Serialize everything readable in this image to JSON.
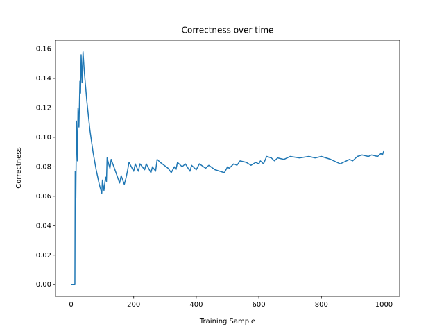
{
  "chart_data": {
    "type": "line",
    "title": "Correctness over time",
    "x_label": "Training Sample",
    "y_label": "Correctness",
    "color": "#1f77b4",
    "x": [
      0,
      10,
      12,
      13,
      15,
      17,
      20,
      22,
      25,
      28,
      30,
      32,
      35,
      38,
      42,
      50,
      60,
      70,
      80,
      90,
      98,
      100,
      105,
      110,
      113,
      115,
      120,
      124,
      128,
      140,
      150,
      155,
      160,
      170,
      175,
      180,
      185,
      195,
      200,
      205,
      215,
      220,
      235,
      240,
      255,
      260,
      270,
      275,
      285,
      310,
      320,
      330,
      335,
      340,
      355,
      365,
      380,
      385,
      400,
      410,
      430,
      440,
      460,
      490,
      500,
      505,
      520,
      530,
      540,
      560,
      575,
      590,
      600,
      605,
      615,
      625,
      640,
      650,
      660,
      680,
      700,
      730,
      760,
      780,
      800,
      830,
      860,
      890,
      900,
      915,
      930,
      950,
      960,
      980,
      990,
      995,
      1000
    ],
    "values": [
      0,
      0,
      0,
      0.077,
      0.059,
      0.111,
      0.084,
      0.12,
      0.107,
      0.138,
      0.13,
      0.156,
      0.137,
      0.158,
      0.145,
      0.125,
      0.105,
      0.09,
      0.078,
      0.068,
      0.062,
      0.071,
      0.064,
      0.073,
      0.07,
      0.086,
      0.082,
      0.079,
      0.085,
      0.078,
      0.072,
      0.069,
      0.074,
      0.068,
      0.072,
      0.077,
      0.083,
      0.079,
      0.077,
      0.082,
      0.077,
      0.082,
      0.078,
      0.082,
      0.076,
      0.08,
      0.077,
      0.085,
      0.083,
      0.079,
      0.076,
      0.08,
      0.078,
      0.083,
      0.08,
      0.082,
      0.077,
      0.081,
      0.078,
      0.082,
      0.079,
      0.081,
      0.078,
      0.076,
      0.08,
      0.079,
      0.082,
      0.081,
      0.084,
      0.083,
      0.081,
      0.083,
      0.082,
      0.084,
      0.082,
      0.087,
      0.086,
      0.084,
      0.086,
      0.085,
      0.087,
      0.086,
      0.087,
      0.086,
      0.087,
      0.085,
      0.082,
      0.085,
      0.084,
      0.087,
      0.088,
      0.087,
      0.088,
      0.087,
      0.089,
      0.088,
      0.091
    ],
    "xlim": [
      -50,
      1050
    ],
    "ylim": [
      -0.0079,
      0.1659
    ],
    "xticks": [
      0,
      200,
      400,
      600,
      800,
      1000
    ],
    "yticks": [
      {
        "value": 0,
        "label": "0.00"
      },
      {
        "value": 0.02,
        "label": "0.02"
      },
      {
        "value": 0.04,
        "label": "0.04"
      },
      {
        "value": 0.06,
        "label": "0.06"
      },
      {
        "value": 0.08,
        "label": "0.08"
      },
      {
        "value": 0.1,
        "label": "0.10"
      },
      {
        "value": 0.12,
        "label": "0.12"
      },
      {
        "value": 0.14,
        "label": "0.14"
      },
      {
        "value": 0.16,
        "label": "0.16"
      }
    ],
    "grid": false
  }
}
